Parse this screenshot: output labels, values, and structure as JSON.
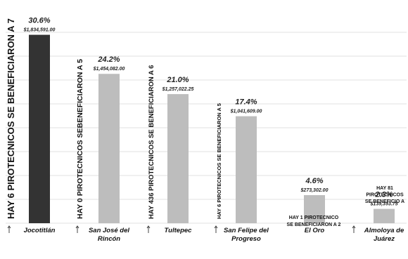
{
  "chart_data": {
    "type": "bar",
    "categories": [
      "Jocotitlán",
      "San José del Rincón",
      "Tultepec",
      "San Felipe del Progreso",
      "El Oro",
      "Almoloya de Juárez"
    ],
    "category_lines": [
      [
        "Jocotitlán"
      ],
      [
        "San José del",
        "Rincón"
      ],
      [
        "Tultepec"
      ],
      [
        "San Felipe del",
        "Progreso"
      ],
      [
        "El Oro"
      ],
      [
        "Almoloya de",
        "Juárez"
      ]
    ],
    "values": [
      1834591.0,
      1454082.0,
      1257022.25,
      1041609.0,
      273302.0,
      139393.75
    ],
    "value_labels": [
      "$1,834,591.00",
      "$1,454,082.00",
      "$1,257,022.25",
      "$1,041,609.00",
      "$273,302.00",
      "$139,393.75"
    ],
    "percent_labels": [
      "30.6%",
      "24.2%",
      "21.0%",
      "17.4%",
      "4.6%",
      "2.3%"
    ],
    "notes": [
      {
        "text": "HAY 6 PIROTECNICOS SE BENEFICIARON A 7",
        "orientation": "vertical"
      },
      {
        "text": "HAY 0 PIROTECNICOS SEBENEFICIARON A 5",
        "orientation": "vertical"
      },
      {
        "text": "HAY 436 PIROTECNICOS SE BENEFICIARON A 6",
        "orientation": "vertical"
      },
      {
        "text": "HAY 6 PIROTECNICOS SE BENEFICIARON A 5",
        "orientation": "vertical"
      },
      {
        "text": "HAY 1 PIROTECNICO SE BENEFICIARON A 2",
        "lines": [
          "HAY 1 PIROTECNICO",
          "SE BENEFICIARON A 2"
        ],
        "orientation": "horizontal"
      },
      {
        "text": "HAY 81 PIROTECNICOS SE BENEFICIO A",
        "lines": [
          "HAY 81",
          "PIROTECNICOS",
          "SE BENEFICIO A"
        ],
        "orientation": "horizontal"
      }
    ],
    "colors": {
      "highlight": "#333333",
      "bar": "#bdbdbd"
    },
    "ylim": [
      0,
      1900000
    ],
    "grid": true
  }
}
